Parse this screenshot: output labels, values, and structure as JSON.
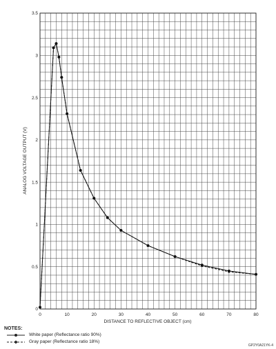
{
  "chart_data": {
    "type": "line",
    "xlabel": "DISTANCE TO REFLECTIVE OBJECT (cm)",
    "ylabel": "ANALOG VOLTAGE OUTPUT (V)",
    "xlim": [
      0,
      80
    ],
    "ylim": [
      0,
      3.5
    ],
    "x_ticks": [
      "0",
      "10",
      "20",
      "30",
      "40",
      "50",
      "60",
      "70",
      "80"
    ],
    "y_ticks": [
      "0",
      "0.5",
      "1",
      "1.5",
      "2",
      "2.5",
      "3",
      "3.5"
    ],
    "grid": true,
    "series": [
      {
        "name": "White paper (Reflectance ratio 90%)",
        "style": "solid",
        "x": [
          0,
          5,
          6,
          7,
          8,
          10,
          15,
          20,
          25,
          30,
          40,
          50,
          60,
          70,
          80
        ],
        "y": [
          0.02,
          3.09,
          3.14,
          2.98,
          2.74,
          2.31,
          1.64,
          1.31,
          1.08,
          0.93,
          0.75,
          0.62,
          0.52,
          0.45,
          0.41
        ]
      },
      {
        "name": "Gray paper (Reflectance ratio 18%)",
        "style": "dashed",
        "x": [
          0,
          5,
          6,
          7,
          8,
          10,
          15,
          20,
          25,
          30,
          40,
          50,
          60,
          70,
          80
        ],
        "y": [
          0.02,
          3.09,
          3.14,
          2.98,
          2.74,
          2.31,
          1.64,
          1.31,
          1.08,
          0.93,
          0.75,
          0.62,
          0.51,
          0.44,
          0.41
        ]
      }
    ]
  },
  "notes": {
    "title": "NOTES:",
    "white_label": "White paper (Reflectance ratio 90%)",
    "gray_label": "Gray paper (Reflectance ratio 18%)"
  },
  "figure_code": "GP2Y0A21YK-4"
}
